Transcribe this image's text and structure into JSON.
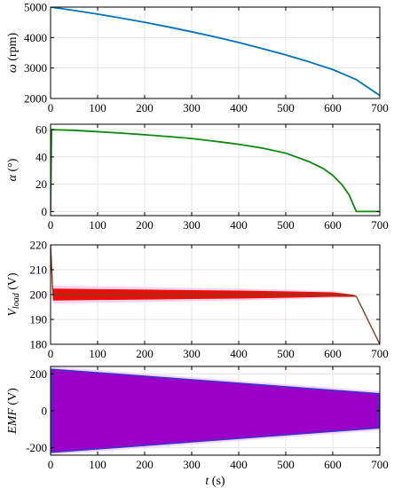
{
  "chart_data": [
    {
      "type": "line",
      "ylabel": "ω (rpm)",
      "xlim": [
        0,
        700
      ],
      "ylim": [
        2000,
        5000
      ],
      "xticks": [
        0,
        100,
        200,
        300,
        400,
        500,
        600,
        700
      ],
      "yticks": [
        2000,
        3000,
        4000,
        5000
      ],
      "grid": true,
      "color": "#0072BD",
      "series": [
        {
          "x": [
            0,
            50,
            100,
            150,
            200,
            250,
            300,
            350,
            400,
            450,
            500,
            550,
            600,
            650,
            700
          ],
          "y": [
            5000,
            4890,
            4770,
            4640,
            4500,
            4350,
            4190,
            4020,
            3840,
            3640,
            3430,
            3200,
            2950,
            2620,
            2100
          ]
        }
      ]
    },
    {
      "type": "line",
      "ylabel": "α (°)",
      "xlim": [
        0,
        700
      ],
      "ylim": [
        -3,
        64
      ],
      "xticks": [
        0,
        100,
        200,
        300,
        400,
        500,
        600,
        700
      ],
      "yticks": [
        0,
        20,
        40,
        60
      ],
      "grid": true,
      "color": "#0A8A0A",
      "series": [
        {
          "x": [
            0,
            2,
            50,
            100,
            150,
            200,
            250,
            300,
            350,
            400,
            450,
            500,
            550,
            580,
            600,
            620,
            635,
            645,
            650,
            700
          ],
          "y": [
            0,
            60,
            59.5,
            58.5,
            57.5,
            56.3,
            55,
            53.5,
            51.5,
            49.3,
            46.5,
            42.8,
            36.5,
            31.5,
            26.5,
            19.5,
            12,
            4,
            0,
            0
          ]
        }
      ]
    },
    {
      "type": "line",
      "ylabel": "V_load (V)",
      "xlim": [
        0,
        700
      ],
      "ylim": [
        180,
        220
      ],
      "xticks": [
        0,
        100,
        200,
        300,
        400,
        500,
        600,
        700
      ],
      "yticks": [
        180,
        190,
        200,
        210,
        220
      ],
      "grid": true,
      "color": "#E8100A",
      "line_color": "#8B3A1A",
      "series": [
        {
          "x": [
            0,
            5,
            100,
            200,
            300,
            400,
            500,
            600,
            645,
            650,
            700
          ],
          "y": [
            220,
            200,
            200,
            200,
            200,
            200,
            200,
            200,
            199.5,
            199.3,
            180
          ],
          "ripple": [
            0,
            2.4,
            2.2,
            2.0,
            1.8,
            1.6,
            1.3,
            0.9,
            0.4,
            0,
            0
          ]
        }
      ]
    },
    {
      "type": "area",
      "ylabel": "EMF (V)",
      "xlabel": "t (s)",
      "xlim": [
        0,
        700
      ],
      "ylim": [
        -240,
        240
      ],
      "xticks": [
        0,
        100,
        200,
        300,
        400,
        500,
        600,
        700
      ],
      "yticks": [
        -200,
        0,
        200
      ],
      "grid": true,
      "color": "#9B00C8",
      "edge_color": "#3A34D0",
      "series": [
        {
          "x": [
            0,
            700
          ],
          "upper": [
            225,
            92
          ],
          "lower": [
            -225,
            -92
          ]
        }
      ]
    }
  ]
}
